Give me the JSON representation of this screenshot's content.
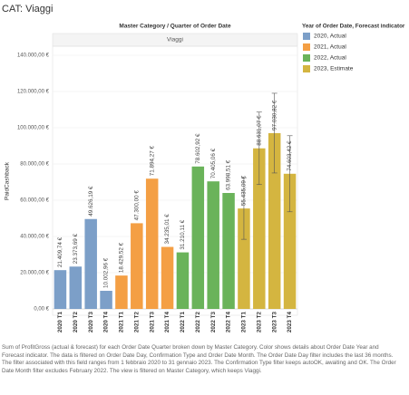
{
  "chart_data": {
    "type": "bar",
    "title": "CAT: Viaggi",
    "header": "Master Category / Quarter of Order Date",
    "panel": "Viaggi",
    "y_label": "PaidCashback",
    "legend_title": "Year of Order Date, Forecast indicator",
    "legend_position": "right",
    "grid": true,
    "categories": [
      "2020 T1",
      "2020 T2",
      "2020 T3",
      "2020 T4",
      "2021 T1",
      "2021 T2",
      "2021 T3",
      "2021 T4",
      "2022 T1",
      "2022 T2",
      "2022 T3",
      "2022 T4",
      "2023 T1",
      "2023 T2",
      "2023 T3",
      "2023 T4"
    ],
    "ylim": [
      0,
      145000
    ],
    "yticks": [
      {
        "value": 0,
        "label": "0,00 €"
      },
      {
        "value": 20000,
        "label": "20.000,00 €"
      },
      {
        "value": 40000,
        "label": "40.000,00 €"
      },
      {
        "value": 60000,
        "label": "60.000,00 €"
      },
      {
        "value": 80000,
        "label": "80.000,00 €"
      },
      {
        "value": 100000,
        "label": "100.000,00 €"
      },
      {
        "value": 120000,
        "label": "120.000,00 €"
      },
      {
        "value": 140000,
        "label": "140.000,00 €"
      }
    ],
    "series": [
      {
        "name": "2020, Actual",
        "color": "#7c9fc8",
        "values": [
          21409.74,
          23373.69,
          49626.19,
          10002.96,
          null,
          null,
          null,
          null,
          null,
          null,
          null,
          null,
          null,
          null,
          null,
          null
        ],
        "value_labels": [
          "21.409,74 €",
          "23.373,69 €",
          "49.626,19 €",
          "10.002,96 €",
          null,
          null,
          null,
          null,
          null,
          null,
          null,
          null,
          null,
          null,
          null,
          null
        ]
      },
      {
        "name": "2021, Actual",
        "color": "#f49f44",
        "values": [
          null,
          null,
          null,
          null,
          18429.52,
          47300.0,
          71894.27,
          34235.01,
          null,
          null,
          null,
          null,
          null,
          null,
          null,
          null
        ],
        "value_labels": [
          null,
          null,
          null,
          null,
          "18.429,52 €",
          "47.300,00 €",
          "71.894,27 €",
          "34.235,01 €",
          null,
          null,
          null,
          null,
          null,
          null,
          null,
          null
        ]
      },
      {
        "name": "2022, Actual",
        "color": "#6ab35a",
        "values": [
          null,
          null,
          null,
          null,
          null,
          null,
          null,
          null,
          31210.11,
          78602.92,
          70405.06,
          63998.51,
          null,
          null,
          null,
          null
        ],
        "value_labels": [
          null,
          null,
          null,
          null,
          null,
          null,
          null,
          null,
          "31.210,11 €",
          "78.602,92 €",
          "70.405,06 €",
          "63.998,51 €",
          null,
          null,
          null,
          null
        ]
      },
      {
        "name": "2023, Estimate",
        "color": "#d4b540",
        "values": [
          null,
          null,
          null,
          null,
          null,
          null,
          null,
          null,
          null,
          null,
          null,
          null,
          55435.09,
          88631.07,
          97030.82,
          74603.42
        ],
        "value_labels": [
          null,
          null,
          null,
          null,
          null,
          null,
          null,
          null,
          null,
          null,
          null,
          null,
          "55.435,09 €",
          "88.631,07 €",
          "97.030,82 €",
          "74.603,42 €"
        ],
        "errors": [
          null,
          null,
          null,
          null,
          null,
          null,
          null,
          null,
          null,
          null,
          null,
          null,
          17000,
          20000,
          22000,
          21000
        ]
      }
    ],
    "caption": "Sum of ProfitGross (actual & forecast)  for each Order Date Quarter broken down by Master Category.  Color shows details about Order Date Year and Forecast indicator. The data is filtered on Order Date Day, Confirmation Type and Order Date Month. The Order Date Day filter includes the last 36 months. The filter associated with this field ranges from 1 febbraio 2020 to 31 gennaio 2023. The Confirmation Type filter keeps autoOK, awaiting and OK. The Order Date Month filter excludes February 2022. The view is filtered on Master Category, which keeps Viaggi."
  }
}
